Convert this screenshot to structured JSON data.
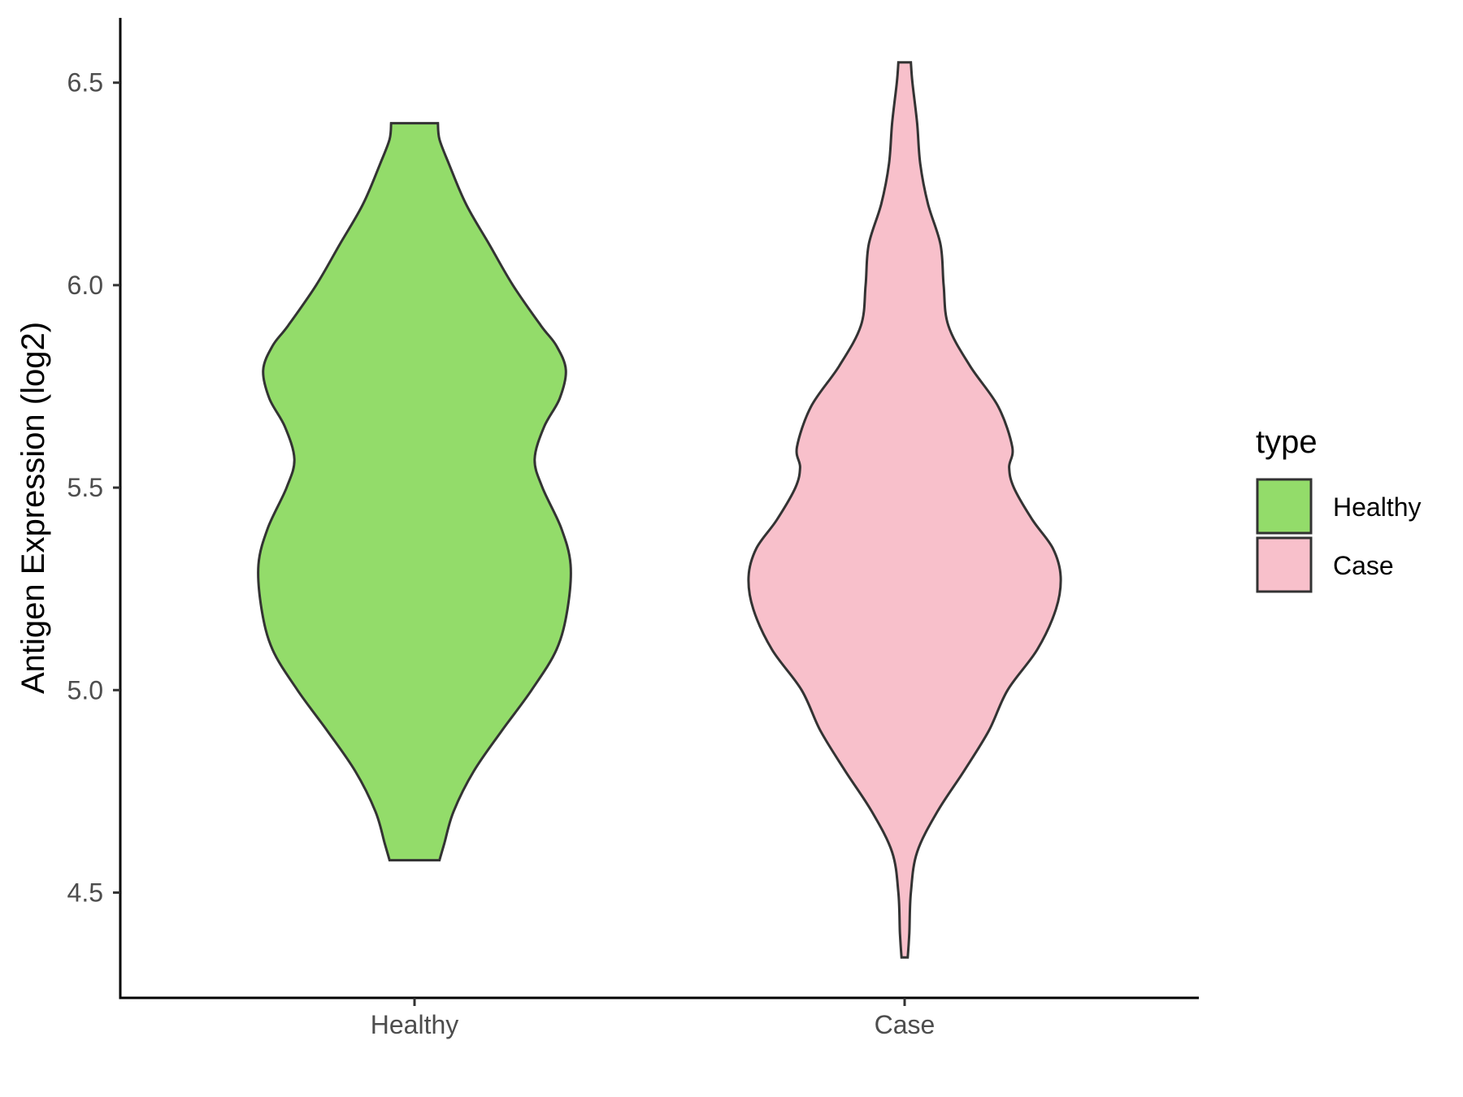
{
  "chart_data": {
    "type": "violin",
    "ylabel": "Antigen Expression (log2)",
    "xlabel": "",
    "categories": [
      "Healthy",
      "Case"
    ],
    "ylim": [
      4.24,
      6.66
    ],
    "yticks": [
      4.5,
      5.0,
      5.5,
      6.0,
      6.5
    ],
    "ytick_labels": [
      "4.5",
      "5.0",
      "5.5",
      "6.0",
      "6.5"
    ],
    "legend": {
      "title": "type",
      "position": "right",
      "entries": [
        {
          "label": "Healthy",
          "color": "#93DC6A"
        },
        {
          "label": "Case",
          "color": "#F8C0CB"
        }
      ]
    },
    "series": [
      {
        "category": "Healthy",
        "color": "#93DC6A",
        "density_profile": [
          [
            4.58,
            0.16
          ],
          [
            4.62,
            0.19
          ],
          [
            4.7,
            0.25
          ],
          [
            4.8,
            0.38
          ],
          [
            4.9,
            0.56
          ],
          [
            5.0,
            0.75
          ],
          [
            5.1,
            0.91
          ],
          [
            5.2,
            0.98
          ],
          [
            5.31,
            1.0
          ],
          [
            5.4,
            0.94
          ],
          [
            5.5,
            0.82
          ],
          [
            5.57,
            0.77
          ],
          [
            5.65,
            0.83
          ],
          [
            5.72,
            0.93
          ],
          [
            5.79,
            0.97
          ],
          [
            5.85,
            0.91
          ],
          [
            5.9,
            0.81
          ],
          [
            6.0,
            0.63
          ],
          [
            6.1,
            0.48
          ],
          [
            6.2,
            0.33
          ],
          [
            6.3,
            0.22
          ],
          [
            6.36,
            0.16
          ],
          [
            6.4,
            0.15
          ]
        ]
      },
      {
        "category": "Case",
        "color": "#F8C0CB",
        "density_profile": [
          [
            4.34,
            0.02
          ],
          [
            4.4,
            0.03
          ],
          [
            4.5,
            0.04
          ],
          [
            4.6,
            0.08
          ],
          [
            4.7,
            0.21
          ],
          [
            4.8,
            0.38
          ],
          [
            4.9,
            0.54
          ],
          [
            5.0,
            0.66
          ],
          [
            5.1,
            0.85
          ],
          [
            5.2,
            0.97
          ],
          [
            5.28,
            1.0
          ],
          [
            5.35,
            0.95
          ],
          [
            5.42,
            0.82
          ],
          [
            5.5,
            0.7
          ],
          [
            5.55,
            0.67
          ],
          [
            5.6,
            0.69
          ],
          [
            5.7,
            0.6
          ],
          [
            5.8,
            0.42
          ],
          [
            5.9,
            0.28
          ],
          [
            6.0,
            0.25
          ],
          [
            6.1,
            0.23
          ],
          [
            6.2,
            0.15
          ],
          [
            6.3,
            0.1
          ],
          [
            6.4,
            0.08
          ],
          [
            6.5,
            0.05
          ],
          [
            6.55,
            0.04
          ]
        ]
      }
    ]
  }
}
